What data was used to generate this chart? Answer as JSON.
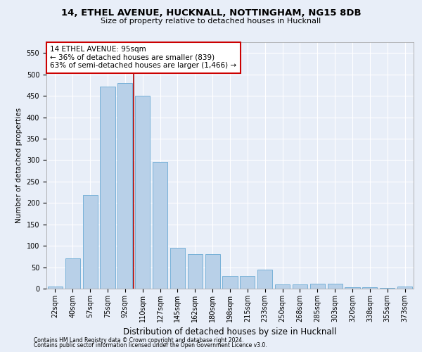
{
  "title1": "14, ETHEL AVENUE, HUCKNALL, NOTTINGHAM, NG15 8DB",
  "title2": "Size of property relative to detached houses in Hucknall",
  "xlabel": "Distribution of detached houses by size in Hucknall",
  "ylabel": "Number of detached properties",
  "categories": [
    "22sqm",
    "40sqm",
    "57sqm",
    "75sqm",
    "92sqm",
    "110sqm",
    "127sqm",
    "145sqm",
    "162sqm",
    "180sqm",
    "198sqm",
    "215sqm",
    "233sqm",
    "250sqm",
    "268sqm",
    "285sqm",
    "303sqm",
    "320sqm",
    "338sqm",
    "355sqm",
    "373sqm"
  ],
  "values": [
    5,
    70,
    218,
    472,
    480,
    450,
    295,
    95,
    80,
    80,
    30,
    30,
    45,
    10,
    10,
    12,
    12,
    3,
    3,
    2,
    5
  ],
  "bar_color": "#b8d0e8",
  "bar_edge_color": "#6aaad4",
  "marker_line_color": "#aa0000",
  "annotation_text": "14 ETHEL AVENUE: 95sqm\n← 36% of detached houses are smaller (839)\n63% of semi-detached houses are larger (1,466) →",
  "annotation_box_facecolor": "#ffffff",
  "annotation_box_edgecolor": "#cc0000",
  "footnote1": "Contains HM Land Registry data © Crown copyright and database right 2024.",
  "footnote2": "Contains public sector information licensed under the Open Government Licence v3.0.",
  "ylim": [
    0,
    575
  ],
  "yticks": [
    0,
    50,
    100,
    150,
    200,
    250,
    300,
    350,
    400,
    450,
    500,
    550
  ],
  "bg_color": "#e8eef8",
  "grid_color": "#ffffff",
  "title1_fontsize": 9.5,
  "title2_fontsize": 8,
  "tick_fontsize": 7,
  "ylabel_fontsize": 7.5,
  "xlabel_fontsize": 8.5,
  "footnote_fontsize": 5.5
}
